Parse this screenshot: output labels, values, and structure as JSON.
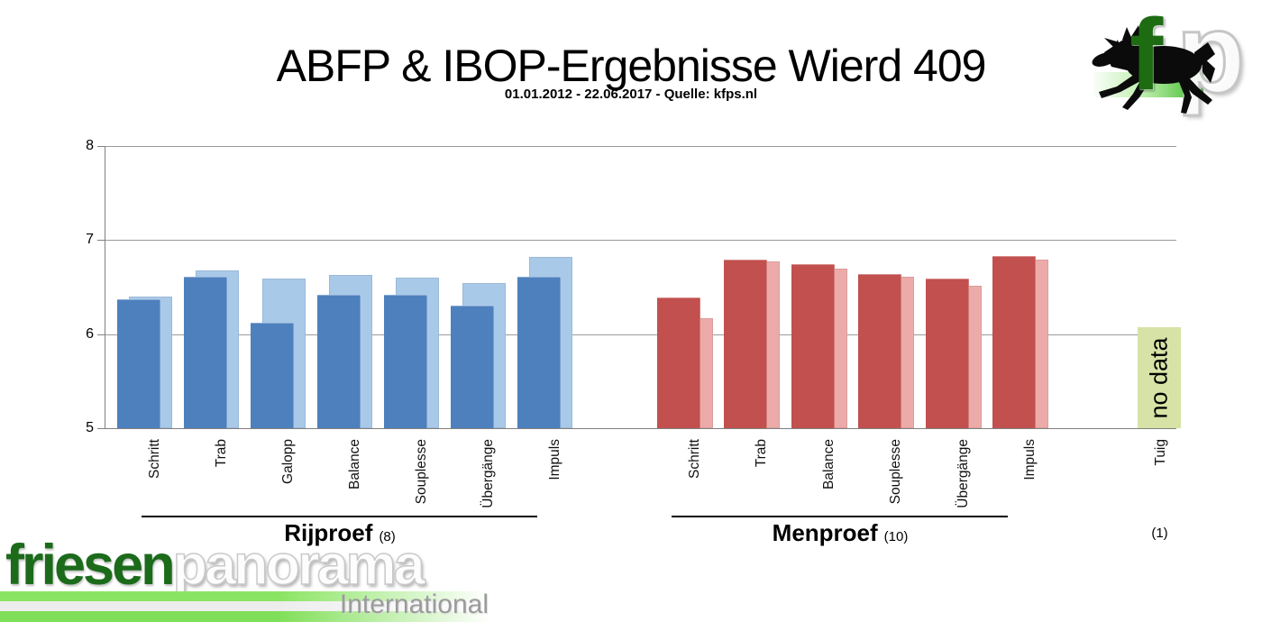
{
  "header": {
    "title": "ABFP & IBOP-Ergebnisse Wierd 409",
    "subtitle": "01.01.2012 - 22.06.2017 - Quelle: kfps.nl"
  },
  "top_logo": {
    "letter_f": "f",
    "letter_p": "p"
  },
  "footer_logo": {
    "word1": "friesen",
    "word2": "panorama",
    "word3": "International"
  },
  "chart_data": {
    "type": "bar",
    "title": "ABFP & IBOP-Ergebnisse Wierd 409",
    "subtitle": "01.01.2012 - 22.06.2017 - Quelle: kfps.nl",
    "ylim": [
      5,
      8
    ],
    "yticks": [
      8,
      7,
      6,
      5
    ],
    "grid": true,
    "legend": "none",
    "colors": {
      "blue_front": "#4d80bd",
      "blue_back": "#a9c9e9",
      "red_front": "#c1504e",
      "red_back": "#ecaba9",
      "nodata_green": "#d7e3a6",
      "gridline": "#9a9a9a"
    },
    "groups": [
      {
        "name": "Rijproef",
        "count_label": "(8)",
        "categories": [
          "Schritt",
          "Trab",
          "Galopp",
          "Balance",
          "Souplesse",
          "Übergänge",
          "Impuls"
        ],
        "series": [
          {
            "name": "front-dark",
            "color": "#4d80bd",
            "values": [
              6.37,
              6.61,
              6.12,
              6.42,
              6.42,
              6.3,
              6.61
            ]
          },
          {
            "name": "back-light",
            "color": "#a9c9e9",
            "values": [
              6.4,
              6.68,
              6.59,
              6.63,
              6.6,
              6.54,
              6.82
            ]
          }
        ]
      },
      {
        "name": "Menproef",
        "count_label": "(10)",
        "categories": [
          "Schritt",
          "Trab",
          "Balance",
          "Souplesse",
          "Übergänge",
          "Impuls"
        ],
        "series": [
          {
            "name": "front-dark",
            "color": "#c1504e",
            "values": [
              6.39,
              6.79,
              6.74,
              6.64,
              6.59,
              6.83
            ]
          },
          {
            "name": "back-light",
            "color": "#ecaba9",
            "values": [
              6.17,
              6.77,
              6.7,
              6.61,
              6.51,
              6.79
            ]
          }
        ]
      },
      {
        "name": "",
        "count_label": "(1)",
        "categories": [
          "Tuig"
        ],
        "no_data": {
          "label": "no data",
          "color": "#d7e3a6",
          "top_value": 6.07
        }
      }
    ]
  }
}
